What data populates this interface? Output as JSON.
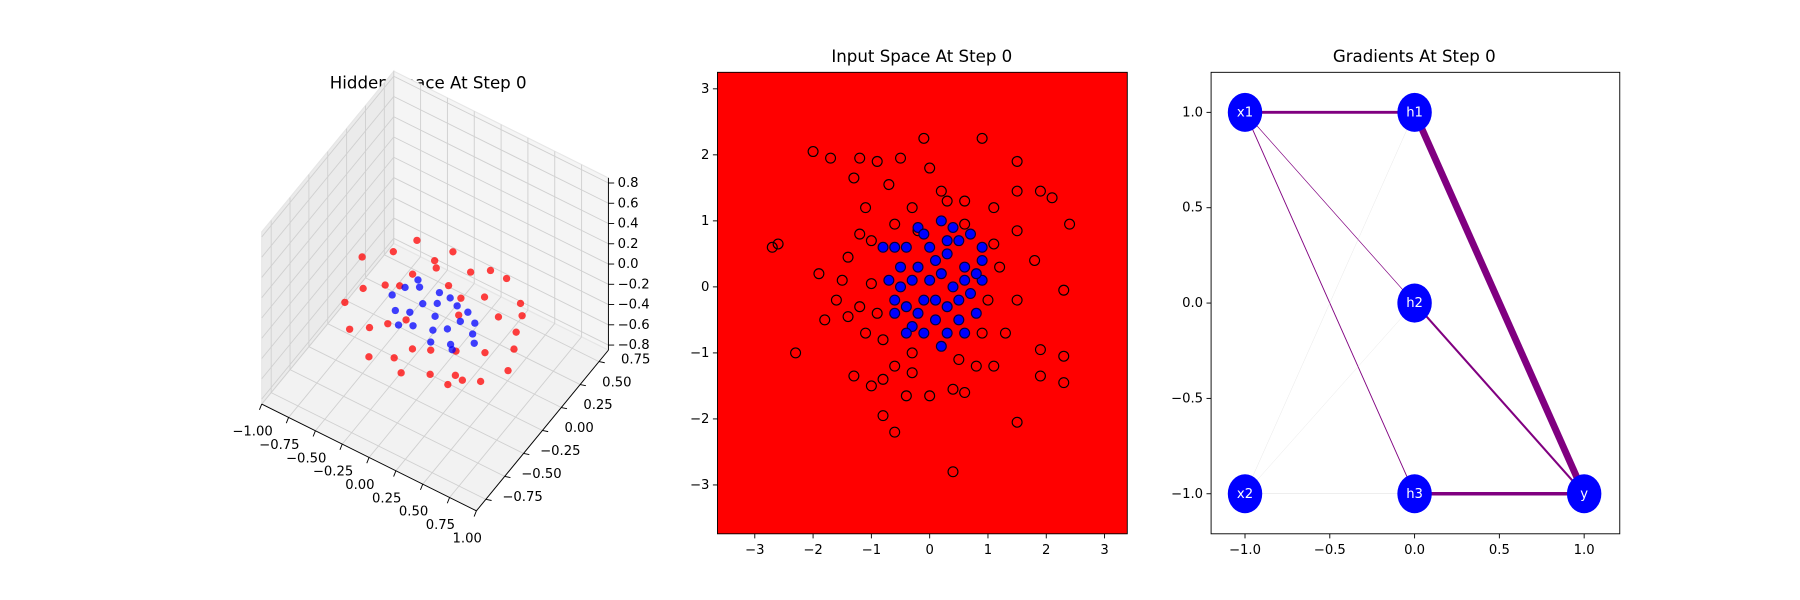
{
  "chart_data": [
    {
      "type": "scatter3d",
      "title": "Hidden Space At Step 0",
      "xlim": [
        -1.0,
        1.0
      ],
      "ylim": [
        -0.875,
        0.875
      ],
      "zlim": [
        -0.85,
        0.85
      ],
      "xticks": [
        {
          "value": -1.0,
          "label": "−1.00"
        },
        {
          "value": -0.75,
          "label": "−0.75"
        },
        {
          "value": -0.5,
          "label": "−0.50"
        },
        {
          "value": -0.25,
          "label": "−0.25"
        },
        {
          "value": 0,
          "label": "0.00"
        },
        0.25,
        {
          "value": 0.5,
          "label": "0.50"
        },
        0.75,
        {
          "value": 1.0,
          "label": "1.00"
        }
      ],
      "yticks": [
        {
          "value": -0.75,
          "label": "−0.75"
        },
        {
          "value": -0.5,
          "label": "−0.50"
        },
        {
          "value": -0.25,
          "label": "−0.25"
        },
        {
          "value": 0,
          "label": "0.00"
        },
        0.25,
        {
          "value": 0.5,
          "label": "0.50"
        },
        0.75
      ],
      "zticks": [
        {
          "value": -0.8,
          "label": "−0.8"
        },
        {
          "value": -0.6,
          "label": "−0.6"
        },
        {
          "value": -0.4,
          "label": "−0.4"
        },
        {
          "value": -0.2,
          "label": "−0.2"
        },
        {
          "value": 0,
          "label": "0.0"
        },
        0.2,
        0.4,
        0.6,
        0.8
      ],
      "series": [
        {
          "color": "red",
          "x": [
            -0.75,
            -0.7,
            -0.6,
            -0.55,
            -0.5,
            -0.45,
            -0.4,
            -0.35,
            -0.3,
            -0.25,
            -0.2,
            -0.15,
            -0.1,
            -0.05,
            0,
            0.05,
            0.1,
            0.15,
            0.2,
            0.25,
            0.3,
            0.35,
            0.4,
            0.45,
            0.5,
            0.55,
            0.6,
            0.65,
            0.7,
            0.75,
            -0.6,
            -0.4,
            -0.2,
            0,
            0.2,
            0.4,
            0.6,
            -0.3,
            0.1,
            0.5
          ],
          "y": [
            0.1,
            -0.2,
            0.3,
            -0.35,
            0.05,
            0.4,
            -0.3,
            0.2,
            -0.45,
            0.35,
            -0.1,
            0.45,
            -0.4,
            0.25,
            -0.3,
            0.4,
            -0.2,
            0.1,
            -0.35,
            0.3,
            -0.15,
            0.45,
            -0.3,
            0.2,
            -0.05,
            0.35,
            -0.25,
            0.15,
            0.05,
            -0.1,
            -0.1,
            0.1,
            0.3,
            -0.45,
            0.45,
            -0.4,
            0.3,
            -0.2,
            0.2,
            -0.35
          ],
          "z": [
            -0.15,
            -0.3,
            -0.2,
            -0.35,
            -0.25,
            -0.1,
            -0.3,
            -0.2,
            -0.4,
            -0.15,
            -0.3,
            -0.1,
            -0.35,
            -0.2,
            -0.3,
            -0.15,
            -0.35,
            -0.25,
            -0.4,
            -0.2,
            -0.3,
            -0.1,
            -0.35,
            -0.2,
            -0.3,
            -0.15,
            -0.35,
            -0.2,
            -0.25,
            -0.3,
            -0.2,
            -0.25,
            -0.15,
            -0.4,
            -0.1,
            -0.35,
            -0.2,
            -0.3,
            -0.2,
            -0.3
          ]
        },
        {
          "color": "blue",
          "x": [
            -0.4,
            -0.35,
            -0.3,
            -0.25,
            -0.2,
            -0.15,
            -0.1,
            -0.05,
            0,
            0.05,
            0.1,
            0.15,
            0.2,
            0.25,
            0.3,
            0.35,
            0.4,
            -0.3,
            -0.1,
            0.1,
            0.3,
            -0.2,
            0,
            0.2
          ],
          "y": [
            0,
            0.1,
            -0.1,
            0.15,
            -0.05,
            0.05,
            -0.15,
            0.1,
            0,
            -0.1,
            0.15,
            -0.05,
            0.05,
            -0.15,
            0.1,
            0,
            -0.05,
            0.2,
            0.2,
            -0.2,
            -0.2,
            -0.2,
            0.2,
            0.15
          ],
          "z": [
            -0.25,
            -0.24,
            -0.26,
            -0.23,
            -0.27,
            -0.25,
            -0.26,
            -0.24,
            -0.25,
            -0.27,
            -0.23,
            -0.25,
            -0.24,
            -0.26,
            -0.25,
            -0.24,
            -0.26,
            -0.23,
            -0.25,
            -0.27,
            -0.24,
            -0.26,
            -0.25,
            -0.24
          ]
        }
      ]
    },
    {
      "type": "scatter",
      "title": "Input Space At Step 0",
      "background": "red",
      "xlim": [
        -3.64,
        3.39
      ],
      "ylim": [
        -3.74,
        3.25
      ],
      "xticks": [
        {
          "value": -3,
          "label": "−3"
        },
        {
          "value": -2,
          "label": "−2"
        },
        {
          "value": -1,
          "label": "−1"
        },
        0,
        1,
        2,
        3
      ],
      "yticks": [
        {
          "value": -3,
          "label": "−3"
        },
        {
          "value": -2,
          "label": "−2"
        },
        {
          "value": -1,
          "label": "−1"
        },
        0,
        1,
        2,
        3
      ],
      "series": [
        {
          "color": "none",
          "edgecolor": "black",
          "x": [
            -2.7,
            -2.6,
            -2.3,
            -2.0,
            -1.9,
            -1.8,
            -1.7,
            -1.6,
            -1.5,
            -1.4,
            -1.3,
            -1.2,
            -1.2,
            -1.1,
            -1.0,
            -0.9,
            -0.7,
            -0.5,
            -0.3,
            -0.1,
            0.0,
            0.2,
            0.6,
            0.9,
            1.1,
            1.5,
            1.5,
            1.9,
            2.1,
            2.4,
            1.5,
            1.8,
            2.3,
            1.5,
            1.3,
            1.9,
            1.9,
            2.3,
            2.3,
            1.5,
            1.1,
            0.8,
            0.6,
            0.4,
            0.4,
            0.0,
            -0.3,
            -0.4,
            -0.6,
            -0.8,
            -0.8,
            -0.6,
            -1.0,
            -1.3,
            -1.1,
            -1.2,
            -0.8,
            -0.9,
            -1.0,
            -0.6,
            -0.2,
            0.3,
            0.6,
            1.1,
            1.2,
            1.0,
            0.9,
            0.5,
            -0.3,
            -1.4
          ],
          "y": [
            0.6,
            0.65,
            -1.0,
            2.05,
            0.2,
            -0.5,
            1.95,
            -0.2,
            0.1,
            -0.45,
            1.65,
            1.95,
            0.8,
            1.2,
            0.7,
            1.9,
            1.55,
            1.95,
            1.2,
            2.25,
            1.8,
            1.45,
            1.3,
            2.25,
            1.2,
            1.9,
            1.45,
            1.45,
            1.35,
            0.95,
            0.85,
            0.4,
            -0.05,
            -0.2,
            -0.7,
            -0.95,
            -1.35,
            -1.05,
            -1.45,
            -2.05,
            -1.2,
            -1.2,
            -1.6,
            -1.55,
            -2.8,
            -1.65,
            -1.3,
            -1.65,
            -1.2,
            -1.4,
            -1.95,
            -2.2,
            -1.5,
            -1.35,
            -0.7,
            -0.3,
            -0.8,
            -0.4,
            0.05,
            0.95,
            0.85,
            1.3,
            0.95,
            0.65,
            0.3,
            -0.2,
            -0.7,
            -1.1,
            -1.0,
            0.45
          ]
        },
        {
          "color": "blue",
          "edgecolor": "#000040",
          "x": [
            0.2,
            -0.4,
            -0.2,
            0.5,
            0.9,
            0.7,
            -0.7,
            -0.5,
            -0.3,
            0.1,
            0.3,
            0.6,
            0.9,
            0.2,
            0.0,
            -0.1,
            -0.4,
            -0.6,
            -0.6,
            -0.3,
            -0.1,
            0.1,
            0.3,
            0.5,
            0.7,
            0.9,
            0.8,
            0.5,
            0.3,
            0.2,
            -0.4,
            -0.2,
            0.4,
            0.6,
            -0.8,
            -0.6,
            0.0,
            0.4,
            -0.2,
            0.1,
            -0.5,
            0.8,
            0.6,
            -0.1,
            0.3
          ],
          "y": [
            1.0,
            0.6,
            0.9,
            0.7,
            0.6,
            0.8,
            0.1,
            0.3,
            0.1,
            0.4,
            0.5,
            0.3,
            0.4,
            0.2,
            0.1,
            -0.2,
            -0.3,
            -0.4,
            -0.2,
            -0.6,
            -0.7,
            -0.5,
            -0.3,
            -0.2,
            -0.1,
            0.1,
            -0.4,
            -0.5,
            -0.7,
            -0.9,
            -0.7,
            -0.4,
            0.0,
            0.1,
            0.6,
            0.6,
            0.6,
            0.9,
            0.3,
            -0.2,
            0.0,
            0.2,
            -0.7,
            0.8,
            0.7
          ]
        }
      ]
    },
    {
      "type": "network",
      "title": "Gradients At Step 0",
      "node_color": "blue",
      "label_color": "white",
      "xlim": [
        -1.2,
        1.21
      ],
      "ylim": [
        -1.21,
        1.21
      ],
      "xticks": [
        {
          "value": -1.0,
          "label": "−1.0"
        },
        {
          "value": -0.5,
          "label": "−0.5"
        },
        {
          "value": 0,
          "label": "0.0"
        },
        0.5,
        {
          "value": 1.0,
          "label": "1.0"
        }
      ],
      "yticks": [
        {
          "value": -1.0,
          "label": "−1.0"
        },
        {
          "value": -0.5,
          "label": "−0.5"
        },
        {
          "value": 0,
          "label": "0.0"
        },
        0.5,
        {
          "value": 1.0,
          "label": "1.0"
        }
      ],
      "nodes": [
        {
          "label": "x1",
          "x": -1,
          "y": 1
        },
        {
          "label": "x2",
          "x": -1,
          "y": -1
        },
        {
          "label": "h1",
          "x": 0,
          "y": 1
        },
        {
          "label": "h2",
          "x": 0,
          "y": 0
        },
        {
          "label": "h3",
          "x": 0,
          "y": -1
        },
        {
          "label": "y",
          "x": 1,
          "y": -1
        }
      ],
      "edges": [
        {
          "source": 0,
          "target": 2,
          "width": 2.5,
          "color": "purple"
        },
        {
          "source": 0,
          "target": 3,
          "width": 0.6,
          "color": "purple"
        },
        {
          "source": 0,
          "target": 4,
          "width": 0.8,
          "color": "purple"
        },
        {
          "source": 1,
          "target": 2,
          "width": 0.2,
          "color": "#cccccc"
        },
        {
          "source": 1,
          "target": 3,
          "width": 0.2,
          "color": "#cccccc"
        },
        {
          "source": 1,
          "target": 4,
          "width": 0.3,
          "color": "#cccccc"
        },
        {
          "source": 2,
          "target": 5,
          "width": 6,
          "color": "purple"
        },
        {
          "source": 3,
          "target": 5,
          "width": 1.8,
          "color": "purple"
        },
        {
          "source": 4,
          "target": 5,
          "width": 3,
          "color": "purple"
        }
      ]
    }
  ]
}
